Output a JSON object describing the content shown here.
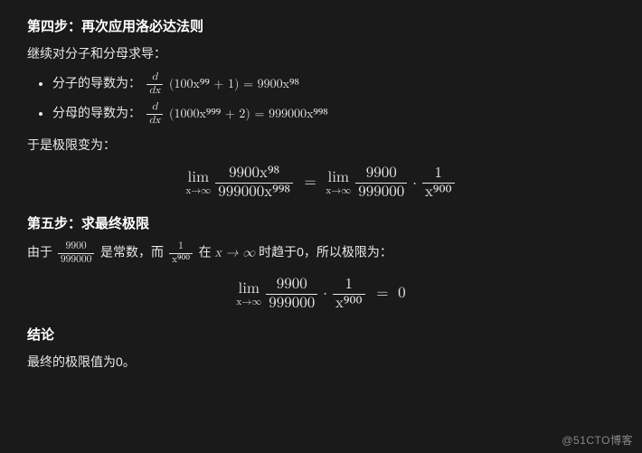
{
  "colors": {
    "background": "#1a1a1a",
    "text": "#e8e8e8",
    "heading": "#ffffff",
    "rule": "#e8e8e8",
    "watermark": "#888888"
  },
  "typography": {
    "body_font": "Microsoft YaHei / PingFang SC",
    "math_font": "Cambria Math / Latin Modern Math",
    "body_size_pt": 14,
    "heading_size_pt": 15,
    "math_block_size_pt": 17
  },
  "step4": {
    "heading": "第四步：再次应用洛必达法则",
    "intro": "继续对分子和分母求导：",
    "bullet1_label": "分子的导数为：",
    "bullet1_deriv_num": "d",
    "bullet1_deriv_den": "dx",
    "bullet1_inside": "(100x⁹⁹ + 1)",
    "bullet1_eq": " = ",
    "bullet1_result": "9900x⁹⁸",
    "bullet2_label": "分母的导数为：",
    "bullet2_deriv_num": "d",
    "bullet2_deriv_den": "dx",
    "bullet2_inside": "(1000x⁹⁹⁹ + 2)",
    "bullet2_eq": " = ",
    "bullet2_result": "999000x⁹⁹⁸",
    "therefore": "于是极限变为：",
    "eq1": {
      "lim1_top": "lim",
      "lim1_bot": "x→∞",
      "frac1_num": "9900x⁹⁸",
      "frac1_den": "999000x⁹⁹⁸",
      "eq": " = ",
      "lim2_top": "lim",
      "lim2_bot": "x→∞",
      "frac2_num": "9900",
      "frac2_den": "999000",
      "dot": "⋅",
      "frac3_num": "1",
      "frac3_den": "x⁹⁰⁰"
    }
  },
  "step5": {
    "heading": "第五步：求最终极限",
    "line_a": "由于 ",
    "const_num": "9900",
    "const_den": "999000",
    "line_b": " 是常数，而 ",
    "zero_num": "1",
    "zero_den": "x⁹⁰⁰",
    "line_c": " 在 ",
    "xtoinf": "x → ∞",
    "line_d": " 时趋于0，所以极限为：",
    "eq2": {
      "lim_top": "lim",
      "lim_bot": "x→∞",
      "frac1_num": "9900",
      "frac1_den": "999000",
      "dot": "⋅",
      "frac2_num": "1",
      "frac2_den": "x⁹⁰⁰",
      "eq": " = ",
      "result": "0"
    }
  },
  "conclusion": {
    "heading": "结论",
    "text": "最终的极限值为0。"
  },
  "watermark": "@51CTO博客"
}
